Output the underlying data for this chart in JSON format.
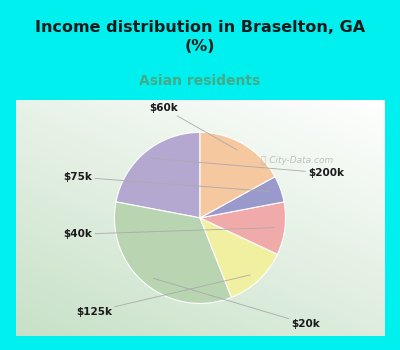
{
  "title": "Income distribution in Braselton, GA\n(%)",
  "subtitle": "Asian residents",
  "labels": [
    "$200k",
    "$20k",
    "$125k",
    "$40k",
    "$75k",
    "$60k"
  ],
  "values": [
    22,
    34,
    12,
    10,
    5,
    17
  ],
  "colors": [
    "#b5a8d0",
    "#b8d4b0",
    "#f0f0a0",
    "#f0aaaa",
    "#9999cc",
    "#f5c8a0"
  ],
  "startangle": 90,
  "bg_cyan": "#00f0f0",
  "title_color": "#1a1a1a",
  "subtitle_color": "#44aa88",
  "watermark": "City-Data.com",
  "chart_bg_top_right": "#f0f8f8",
  "chart_bg_bottom_left": "#c8e8c8"
}
